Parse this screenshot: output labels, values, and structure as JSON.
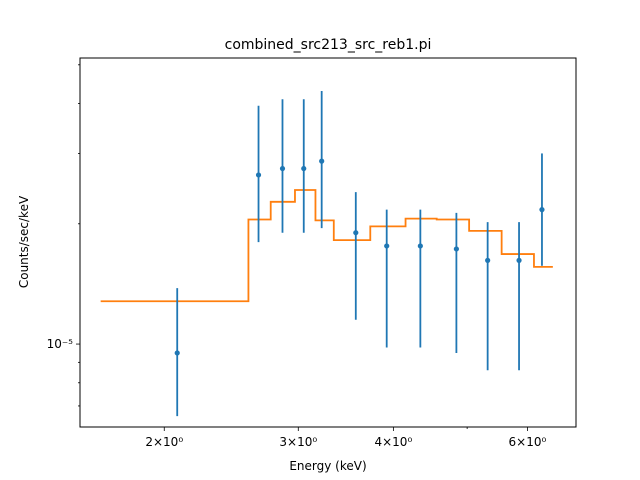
{
  "chart_data": {
    "type": "scatter",
    "title": "combined_src213_src_reb1.pi",
    "xlabel": "Energy (keV)",
    "ylabel": "Counts/sec/keV",
    "xscale": "log",
    "yscale": "log",
    "xlim": [
      1.55,
      6.95
    ],
    "ylim": [
      6.2e-06,
      5.2e-05
    ],
    "xticks": [
      {
        "value": 2,
        "label": "2×10⁰"
      },
      {
        "value": 3,
        "label": "3×10⁰"
      },
      {
        "value": 4,
        "label": "4×10⁰"
      },
      {
        "value": 6,
        "label": "6×10⁰"
      }
    ],
    "yticks": [
      {
        "value": 1e-05,
        "label": "10⁻⁵"
      }
    ],
    "grid": false,
    "series": [
      {
        "kind": "data-errorbar",
        "color": "#1f77b4",
        "points": [
          {
            "x": 2.08,
            "y": 9.5e-06,
            "ylo": 6.6e-06,
            "yhi": 1.38e-05
          },
          {
            "x": 2.66,
            "y": 2.65e-05,
            "ylo": 1.8e-05,
            "yhi": 3.95e-05
          },
          {
            "x": 2.86,
            "y": 2.75e-05,
            "ylo": 1.9e-05,
            "yhi": 4.1e-05
          },
          {
            "x": 3.05,
            "y": 2.75e-05,
            "ylo": 1.9e-05,
            "yhi": 4.1e-05
          },
          {
            "x": 3.22,
            "y": 2.87e-05,
            "ylo": 1.95e-05,
            "yhi": 4.3e-05
          },
          {
            "x": 3.57,
            "y": 1.9e-05,
            "ylo": 1.15e-05,
            "yhi": 2.4e-05
          },
          {
            "x": 3.92,
            "y": 1.76e-05,
            "ylo": 9.8e-06,
            "yhi": 2.17e-05
          },
          {
            "x": 4.34,
            "y": 1.76e-05,
            "ylo": 9.8e-06,
            "yhi": 2.17e-05
          },
          {
            "x": 4.84,
            "y": 1.73e-05,
            "ylo": 9.5e-06,
            "yhi": 2.13e-05
          },
          {
            "x": 5.32,
            "y": 1.62e-05,
            "ylo": 8.6e-06,
            "yhi": 2.02e-05
          },
          {
            "x": 5.85,
            "y": 1.62e-05,
            "ylo": 8.6e-06,
            "yhi": 2.02e-05
          },
          {
            "x": 6.27,
            "y": 2.17e-05,
            "ylo": 1.57e-05,
            "yhi": 3e-05
          }
        ]
      },
      {
        "kind": "model-step",
        "color": "#ff7f0e",
        "steps": [
          {
            "x0": 1.65,
            "x1": 2.58,
            "y": 1.28e-05
          },
          {
            "x0": 2.58,
            "x1": 2.76,
            "y": 2.05e-05
          },
          {
            "x0": 2.76,
            "x1": 2.97,
            "y": 2.27e-05
          },
          {
            "x0": 2.97,
            "x1": 3.16,
            "y": 2.43e-05
          },
          {
            "x0": 3.16,
            "x1": 3.34,
            "y": 2.04e-05
          },
          {
            "x0": 3.34,
            "x1": 3.73,
            "y": 1.82e-05
          },
          {
            "x0": 3.73,
            "x1": 4.15,
            "y": 1.97e-05
          },
          {
            "x0": 4.15,
            "x1": 4.56,
            "y": 2.06e-05
          },
          {
            "x0": 4.56,
            "x1": 5.03,
            "y": 2.05e-05
          },
          {
            "x0": 5.03,
            "x1": 5.55,
            "y": 1.92e-05
          },
          {
            "x0": 5.55,
            "x1": 6.12,
            "y": 1.68e-05
          },
          {
            "x0": 6.12,
            "x1": 6.48,
            "y": 1.56e-05
          }
        ]
      }
    ]
  }
}
